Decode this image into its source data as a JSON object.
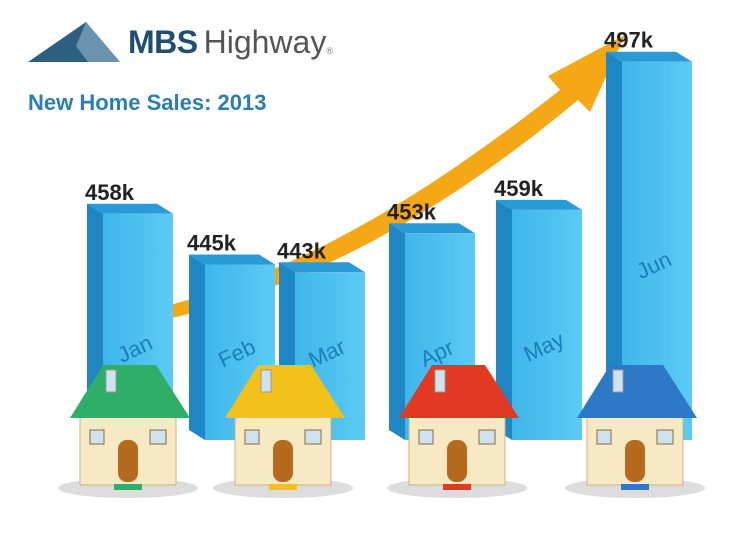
{
  "logo": {
    "bold": "MBS",
    "light": "Highway",
    "mark": "®"
  },
  "chart_data": {
    "type": "bar",
    "title": "New Home Sales: 2013",
    "categories": [
      "Jan",
      "Feb",
      "Mar",
      "Apr",
      "May",
      "Jun"
    ],
    "values": [
      458,
      445,
      443,
      453,
      459,
      497
    ],
    "data_labels": [
      "458k",
      "445k",
      "443k",
      "453k",
      "459k",
      "497k"
    ],
    "unit": "k",
    "ylim": [
      400,
      500
    ],
    "xlabel": "",
    "ylabel": "",
    "grid": false,
    "legend": "none",
    "trend_arrow": "up",
    "colors": {
      "bar_front": "#3fb6ea",
      "bar_side": "#1f86c4",
      "bar_top": "#2a9ad6",
      "arrow": "#f5a816",
      "label": "#222222"
    },
    "house_roof_colors": [
      "#2fae6a",
      "#f2c21a",
      "#e23a22",
      "#2e78c8"
    ]
  }
}
